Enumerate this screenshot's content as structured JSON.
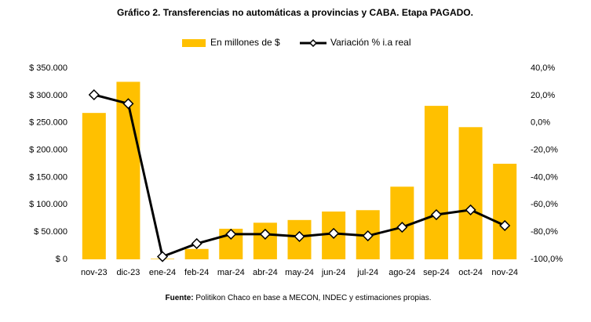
{
  "chart_data": {
    "type": "bar_line",
    "title": "Gráfico 2. Transferencias no automáticas a provincias y CABA. Etapa PAGADO.",
    "source_label": "Fuente:",
    "source": "Politikon Chaco en base a MECON, INDEC y estimaciones propias.",
    "categories": [
      "nov-23",
      "dic-23",
      "ene-24",
      "feb-24",
      "mar-24",
      "abr-24",
      "may-24",
      "jun-24",
      "jul-24",
      "ago-24",
      "sep-24",
      "oct-24",
      "nov-24"
    ],
    "series": [
      {
        "name": "En millones de $",
        "color": "#FFC000",
        "type": "bar",
        "values": [
          268000,
          325000,
          1000,
          19000,
          56000,
          67000,
          72000,
          87500,
          90000,
          133000,
          281000,
          242000,
          175000
        ]
      },
      {
        "name": "Variación % i.a real",
        "color": "#000000",
        "type": "line",
        "axis": "y2",
        "values": [
          20.5,
          14,
          -98,
          -88.5,
          -81.6,
          -81.6,
          -83.3,
          -81,
          -82.8,
          -76.5,
          -67.3,
          -63.8,
          -75.3
        ]
      }
    ],
    "ylim": [
      0,
      350000
    ],
    "yticks": [
      {
        "value": 0,
        "label": "$ 0"
      },
      {
        "value": 50000,
        "label": "$ 50.000"
      },
      {
        "value": 100000,
        "label": "$ 100.000"
      },
      {
        "value": 150000,
        "label": "$ 150.000"
      },
      {
        "value": 200000,
        "label": "$ 200.000"
      },
      {
        "value": 250000,
        "label": "$ 250.000"
      },
      {
        "value": 300000,
        "label": "$ 300.000"
      },
      {
        "value": 350000,
        "label": "$ 350.000"
      }
    ],
    "y2lim": [
      -100,
      40
    ],
    "y2ticks": [
      {
        "value": -100,
        "label": "-100,0%"
      },
      {
        "value": -80,
        "label": "-80,0%"
      },
      {
        "value": -60,
        "label": "-60,0%"
      },
      {
        "value": -40,
        "label": "-40,0%"
      },
      {
        "value": -20,
        "label": "-20,0%"
      },
      {
        "value": 0,
        "label": "0,0%"
      },
      {
        "value": 20,
        "label": "20,0%"
      },
      {
        "value": 40,
        "label": "40,0%"
      }
    ]
  }
}
